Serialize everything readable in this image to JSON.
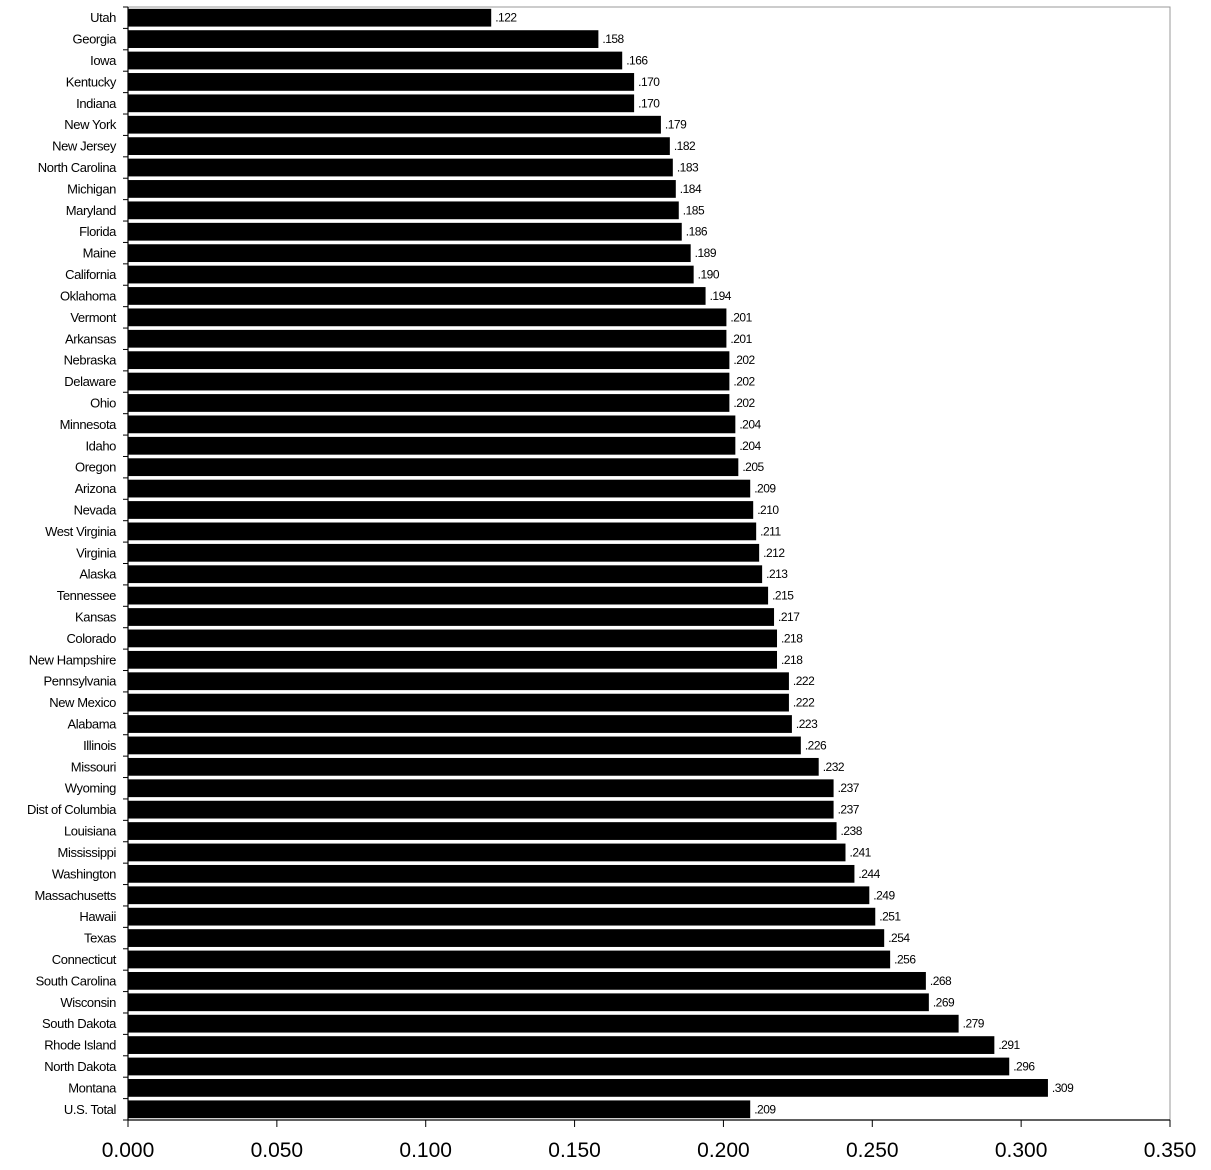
{
  "chart_data": {
    "type": "bar",
    "orientation": "horizontal",
    "title": "",
    "xlabel": "",
    "ylabel": "",
    "xlim": [
      0,
      0.35
    ],
    "x_ticks": [
      0,
      0.05,
      0.1,
      0.15,
      0.2,
      0.25,
      0.3,
      0.35
    ],
    "x_tick_labels": [
      "0.000",
      "0.050",
      "0.100",
      "0.150",
      "0.200",
      "0.250",
      "0.300",
      "0.350"
    ],
    "grid": false,
    "bar_color": "#000000",
    "categories": [
      "Utah",
      "Georgia",
      "Iowa",
      "Kentucky",
      "Indiana",
      "New York",
      "New Jersey",
      "North Carolina",
      "Michigan",
      "Maryland",
      "Florida",
      "Maine",
      "California",
      "Oklahoma",
      "Vermont",
      "Arkansas",
      "Nebraska",
      "Delaware",
      "Ohio",
      "Minnesota",
      "Idaho",
      "Oregon",
      "Arizona",
      "Nevada",
      "West Virginia",
      "Virginia",
      "Alaska",
      "Tennessee",
      "Kansas",
      "Colorado",
      "New Hampshire",
      "Pennsylvania",
      "New Mexico",
      "Alabama",
      "Illinois",
      "Missouri",
      "Wyoming",
      "Dist of Columbia",
      "Louisiana",
      "Mississippi",
      "Washington",
      "Massachusetts",
      "Hawaii",
      "Texas",
      "Connecticut",
      "South Carolina",
      "Wisconsin",
      "South Dakota",
      "Rhode Island",
      "North Dakota",
      "Montana",
      "U.S. Total"
    ],
    "values": [
      0.122,
      0.158,
      0.166,
      0.17,
      0.17,
      0.179,
      0.182,
      0.183,
      0.184,
      0.185,
      0.186,
      0.189,
      0.19,
      0.194,
      0.201,
      0.201,
      0.202,
      0.202,
      0.202,
      0.204,
      0.204,
      0.205,
      0.209,
      0.21,
      0.211,
      0.212,
      0.213,
      0.215,
      0.217,
      0.218,
      0.218,
      0.222,
      0.222,
      0.223,
      0.226,
      0.232,
      0.237,
      0.237,
      0.238,
      0.241,
      0.244,
      0.249,
      0.251,
      0.254,
      0.256,
      0.268,
      0.269,
      0.279,
      0.291,
      0.296,
      0.309,
      0.209
    ],
    "value_labels": [
      ".122",
      ".158",
      ".166",
      ".170",
      ".170",
      ".179",
      ".182",
      ".183",
      ".184",
      ".185",
      ".186",
      ".189",
      ".190",
      ".194",
      ".201",
      ".201",
      ".202",
      ".202",
      ".202",
      ".204",
      ".204",
      ".205",
      ".209",
      ".210",
      ".211",
      ".212",
      ".213",
      ".215",
      ".217",
      ".218",
      ".218",
      ".222",
      ".222",
      ".223",
      ".226",
      ".232",
      ".237",
      ".237",
      ".238",
      ".241",
      ".244",
      ".249",
      ".251",
      ".254",
      ".256",
      ".268",
      ".269",
      ".279",
      ".291",
      ".296",
      ".309",
      ".209"
    ]
  }
}
